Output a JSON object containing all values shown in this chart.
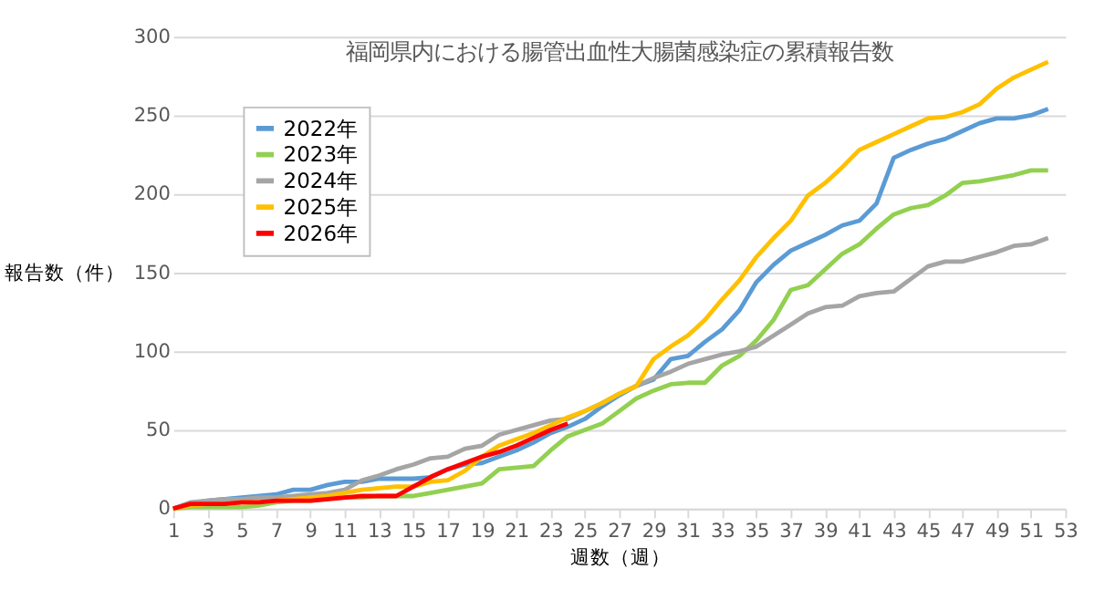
{
  "chart_data": {
    "type": "line",
    "title": "福岡県内における腸管出血性大腸菌感染症の累積報告数",
    "xlabel": "週数（週）",
    "ylabel": "報告数（件）",
    "x": [
      1,
      2,
      3,
      4,
      5,
      6,
      7,
      8,
      9,
      10,
      11,
      12,
      13,
      14,
      15,
      16,
      17,
      18,
      19,
      20,
      21,
      22,
      23,
      24,
      25,
      26,
      27,
      28,
      29,
      30,
      31,
      32,
      33,
      34,
      35,
      36,
      37,
      38,
      39,
      40,
      41,
      42,
      43,
      44,
      45,
      46,
      47,
      48,
      49,
      50,
      51,
      52
    ],
    "series": [
      {
        "name": "2022年",
        "color": "#5b9bd5",
        "values": [
          0,
          3,
          5,
          6,
          7,
          8,
          9,
          12,
          12,
          15,
          17,
          17,
          19,
          19,
          19,
          20,
          25,
          28,
          29,
          33,
          37,
          42,
          48,
          52,
          57,
          65,
          72,
          78,
          82,
          95,
          97,
          106,
          114,
          126,
          144,
          155,
          164,
          169,
          174,
          180,
          183,
          194,
          223,
          228,
          232,
          235,
          240,
          245,
          248,
          248,
          250,
          254
        ]
      },
      {
        "name": "2023年",
        "color": "#92d050",
        "values": [
          0,
          1,
          1,
          1,
          1,
          2,
          4,
          5,
          5,
          6,
          7,
          7,
          8,
          8,
          8,
          10,
          12,
          14,
          16,
          25,
          26,
          27,
          37,
          46,
          50,
          54,
          62,
          70,
          75,
          79,
          80,
          80,
          91,
          97,
          107,
          120,
          139,
          142,
          152,
          162,
          168,
          178,
          187,
          191,
          193,
          199,
          207,
          208,
          210,
          212,
          215,
          215
        ]
      },
      {
        "name": "2024年",
        "color": "#a5a5a5",
        "values": [
          0,
          4,
          5,
          6,
          6,
          7,
          7,
          8,
          9,
          10,
          12,
          18,
          21,
          25,
          28,
          32,
          33,
          38,
          40,
          47,
          50,
          53,
          56,
          57,
          62,
          67,
          73,
          78,
          83,
          87,
          92,
          95,
          98,
          100,
          103,
          110,
          117,
          124,
          128,
          129,
          135,
          137,
          138,
          146,
          154,
          157,
          157,
          160,
          163,
          167,
          168,
          172
        ]
      },
      {
        "name": "2025年",
        "color": "#ffc000",
        "values": [
          0,
          2,
          3,
          3,
          4,
          4,
          5,
          6,
          7,
          8,
          10,
          12,
          13,
          14,
          14,
          17,
          18,
          24,
          33,
          40,
          44,
          48,
          53,
          58,
          62,
          67,
          73,
          78,
          95,
          103,
          110,
          120,
          133,
          145,
          160,
          172,
          183,
          199,
          207,
          217,
          228,
          233,
          238,
          243,
          248,
          249,
          252,
          257,
          267,
          274,
          279,
          284
        ]
      },
      {
        "name": "2026年",
        "color": "#ff0000",
        "x": [
          1,
          2,
          3,
          4,
          5,
          6,
          7,
          8,
          9,
          10,
          11,
          12,
          13,
          14,
          15,
          16,
          17,
          18,
          19,
          20,
          21,
          22,
          23,
          24
        ],
        "values": [
          0,
          3,
          3,
          3,
          4,
          4,
          5,
          5,
          5,
          6,
          7,
          8,
          8,
          8,
          14,
          20,
          25,
          29,
          33,
          36,
          40,
          45,
          50,
          54
        ]
      }
    ],
    "xlim": [
      1,
      53
    ],
    "xticks": [
      1,
      3,
      5,
      7,
      9,
      11,
      13,
      15,
      17,
      19,
      21,
      23,
      25,
      27,
      29,
      31,
      33,
      35,
      37,
      39,
      41,
      43,
      45,
      47,
      49,
      51,
      53
    ],
    "ylim": [
      0,
      300
    ],
    "yticks": [
      0,
      50,
      100,
      150,
      200,
      250,
      300
    ],
    "grid": "y",
    "legend": "top left",
    "line_style": "solid"
  }
}
